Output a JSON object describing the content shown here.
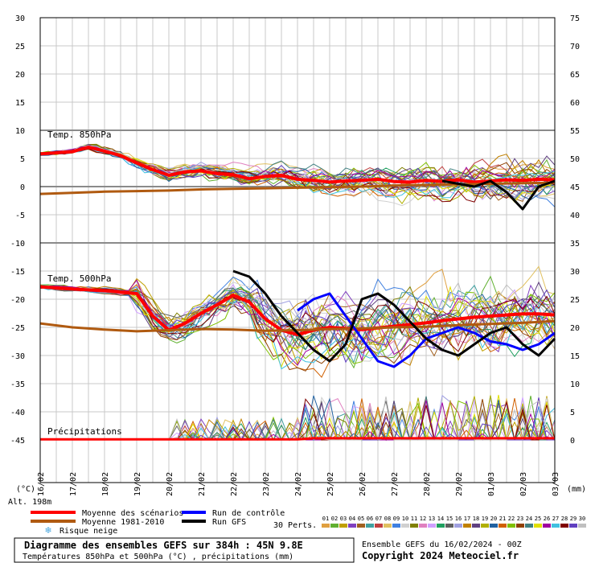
{
  "chart_data": {
    "type": "line",
    "axes": {
      "left_unit": "(°C)",
      "right_unit": "(mm)",
      "left_ticks": [
        "30",
        "25",
        "20",
        "15",
        "10",
        "5",
        "0",
        "-5",
        "-10",
        "-15",
        "-20",
        "-25",
        "-30",
        "-35",
        "-40",
        "-45"
      ],
      "right_ticks": [
        "75",
        "70",
        "65",
        "60",
        "55",
        "50",
        "45",
        "40",
        "35",
        "30",
        "25",
        "20",
        "15",
        "10",
        "5",
        "0"
      ],
      "left_range": [
        -45,
        30
      ],
      "right_range": [
        0,
        75
      ],
      "dates": [
        "17/02",
        "18/02",
        "19/02",
        "20/02",
        "21/02",
        "22/02",
        "23/02",
        "24/02",
        "25/02",
        "26/02",
        "27/02",
        "28/02",
        "29/02",
        "01/03",
        "02/03",
        "03/03"
      ],
      "x_range_hours": [
        0,
        384
      ],
      "grid": true
    },
    "labels": {
      "first_date": "16/02",
      "temp850": "Temp. 850hPa",
      "temp500": "Temp. 500hPa",
      "precip": "Précipitations",
      "altitude": "Alt. 198m"
    },
    "legend": {
      "mean": "Moyenne des scénarios",
      "clim": "Moyenne 1981-2010",
      "snow": "Risque neige",
      "control": "Run de contrôle",
      "gfs": "Run GFS",
      "perts": "30 Perts."
    },
    "pert_labels": [
      "01",
      "02",
      "03",
      "04",
      "05",
      "06",
      "07",
      "08",
      "09",
      "10",
      "11",
      "12",
      "13",
      "14",
      "15",
      "16",
      "17",
      "18",
      "19",
      "20",
      "21",
      "22",
      "23",
      "24",
      "25",
      "26",
      "27",
      "28",
      "29",
      "30"
    ],
    "pert_colors": [
      "#e0a040",
      "#60b030",
      "#c0a000",
      "#8040c0",
      "#a06020",
      "#40a0a0",
      "#c04040",
      "#e0c060",
      "#4080e0",
      "#d0d0d0",
      "#808000",
      "#e080c0",
      "#d0a0ff",
      "#20a060",
      "#606060",
      "#a0a0e0",
      "#c08000",
      "#604080",
      "#b0b000",
      "#2060a0",
      "#d06000",
      "#80c000",
      "#904000",
      "#408080",
      "#e0e000",
      "#a000a0",
      "#40c0e0",
      "#800000",
      "#6040c0",
      "#c0c0c0"
    ],
    "series": [
      {
        "name": "Moyenne des scénarios",
        "level": "850hPa",
        "color": "#ff0000",
        "x": [
          0,
          24,
          36,
          48,
          60,
          72,
          84,
          96,
          108,
          120,
          132,
          144,
          156,
          168,
          180,
          192,
          204,
          216,
          228,
          240,
          252,
          264,
          276,
          288,
          300,
          312,
          324,
          336,
          348,
          360,
          372,
          384
        ],
        "values": [
          5.8,
          6.2,
          7,
          6.3,
          5.5,
          4.2,
          3,
          2,
          2.6,
          2.8,
          2.3,
          2.1,
          1.4,
          1.8,
          2,
          1.3,
          1.1,
          0.8,
          1,
          1.1,
          1.3,
          0.9,
          0.8,
          1.1,
          0.9,
          1.2,
          0.8,
          1,
          1.2,
          1.1,
          1.3,
          1.2
        ]
      },
      {
        "name": "Moyenne des scénarios",
        "level": "500hPa",
        "color": "#ff0000",
        "x": [
          0,
          24,
          48,
          72,
          84,
          96,
          108,
          120,
          132,
          144,
          156,
          168,
          180,
          192,
          204,
          216,
          228,
          240,
          252,
          264,
          276,
          288,
          300,
          312,
          324,
          336,
          348,
          360,
          372,
          384
        ],
        "values": [
          -17.8,
          -18.2,
          -18.5,
          -19,
          -23,
          -25.5,
          -24.3,
          -22.5,
          -21,
          -19.3,
          -20.5,
          -23.5,
          -25.5,
          -26.3,
          -25.5,
          -25,
          -25.2,
          -25.4,
          -25.1,
          -24.8,
          -24.5,
          -24.2,
          -23.8,
          -23.5,
          -23.2,
          -23,
          -22.8,
          -22.6,
          -22.6,
          -22.8
        ]
      },
      {
        "name": "Moyenne 1981-2010",
        "level": "850hPa",
        "color": "#b05a10",
        "x": [
          0,
          24,
          48,
          72,
          96,
          120,
          144,
          168,
          192,
          216,
          240,
          264,
          288,
          312,
          336,
          360,
          384
        ],
        "values": [
          -1.3,
          -1.1,
          -0.9,
          -0.8,
          -0.7,
          -0.5,
          -0.4,
          -0.3,
          -0.2,
          -0.1,
          0,
          0.2,
          0.3,
          0.4,
          0.5,
          0.6,
          0.7
        ]
      },
      {
        "name": "Moyenne 1981-2010",
        "level": "500hPa",
        "color": "#b05a10",
        "x": [
          0,
          24,
          48,
          72,
          96,
          120,
          144,
          168,
          192,
          216,
          240,
          264,
          288,
          312,
          336,
          360,
          384
        ],
        "values": [
          -24.3,
          -25,
          -25.4,
          -25.7,
          -25.5,
          -25.3,
          -25.4,
          -25.6,
          -25.5,
          -25.3,
          -25.2,
          -25,
          -24.9,
          -24.6,
          -24.4,
          -24.2,
          -23.9
        ]
      },
      {
        "name": "Run de contrôle",
        "level": "500hPa",
        "color": "#0000ff",
        "x": [
          192,
          204,
          216,
          228,
          240,
          252,
          264,
          276,
          288,
          300,
          312,
          324,
          336,
          348,
          360,
          372,
          384
        ],
        "values": [
          -22,
          -20,
          -19,
          -23,
          -27,
          -31,
          -32,
          -30,
          -27,
          -26,
          -25,
          -26,
          -27.5,
          -28,
          -29,
          -28,
          -26
        ]
      },
      {
        "name": "Run GFS",
        "level": "500hPa",
        "color": "#000000",
        "x": [
          144,
          156,
          168,
          180,
          192,
          204,
          216,
          228,
          240,
          252,
          264,
          276,
          288,
          300,
          312,
          324,
          336,
          348,
          360,
          372,
          384
        ],
        "values": [
          -15,
          -16,
          -19,
          -23,
          -26,
          -29,
          -31,
          -28,
          -20,
          -19,
          -21,
          -24,
          -27,
          -29,
          -30,
          -28,
          -26,
          -25,
          -28,
          -30,
          -27
        ]
      },
      {
        "name": "Run GFS",
        "level": "850hPa",
        "color": "#000000",
        "x": [
          300,
          312,
          324,
          336,
          348,
          360,
          372,
          384
        ],
        "values": [
          1,
          0.5,
          0,
          1,
          -1,
          -4,
          0,
          1
        ]
      }
    ]
  },
  "footer": {
    "title": "Diagramme des ensembles GEFS sur 384h : 45N 9.8E",
    "subtitle": "Températures 850hPa et 500hPa (°C) , précipitations (mm)",
    "run": "Ensemble GEFS du 16/02/2024 - 00Z",
    "copyright": "Copyright 2024 Meteociel.fr"
  }
}
